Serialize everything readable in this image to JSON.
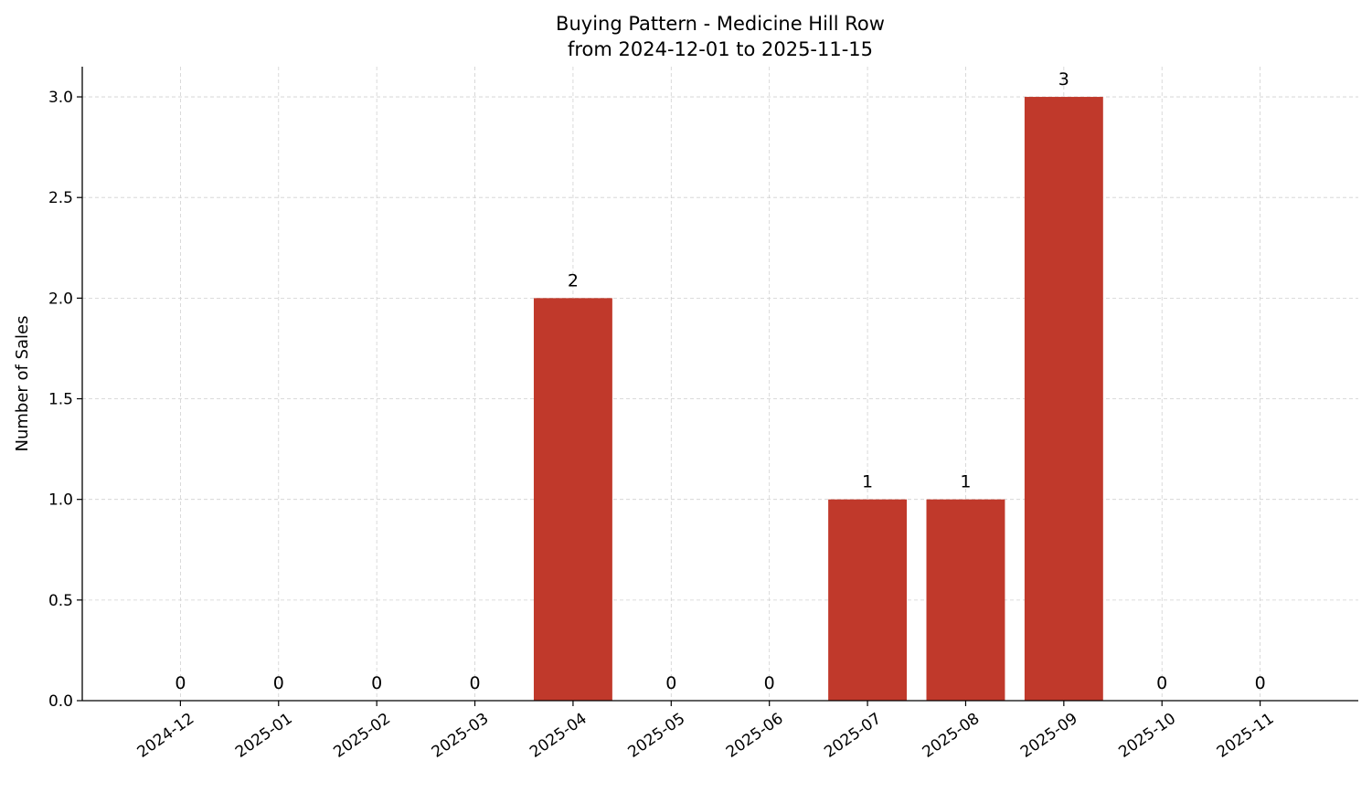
{
  "chart_data": {
    "type": "bar",
    "title": "Buying Pattern - Medicine Hill Row",
    "subtitle": "from 2024-12-01 to 2025-11-15",
    "xlabel": "",
    "ylabel": "Number of Sales",
    "categories": [
      "2024-12",
      "2025-01",
      "2025-02",
      "2025-03",
      "2025-04",
      "2025-05",
      "2025-06",
      "2025-07",
      "2025-08",
      "2025-09",
      "2025-10",
      "2025-11"
    ],
    "values": [
      0,
      0,
      0,
      0,
      2,
      0,
      0,
      1,
      1,
      3,
      0,
      0
    ],
    "data_labels": [
      "0",
      "0",
      "0",
      "0",
      "2",
      "0",
      "0",
      "1",
      "1",
      "3",
      "0",
      "0"
    ],
    "ylim": [
      0,
      3.15
    ],
    "yticks": [
      0.0,
      0.5,
      1.0,
      1.5,
      2.0,
      2.5,
      3.0
    ],
    "ytick_labels": [
      "0.0",
      "0.5",
      "1.0",
      "1.5",
      "2.0",
      "2.5",
      "3.0"
    ],
    "grid": true,
    "bar_color": "#c0392b"
  }
}
